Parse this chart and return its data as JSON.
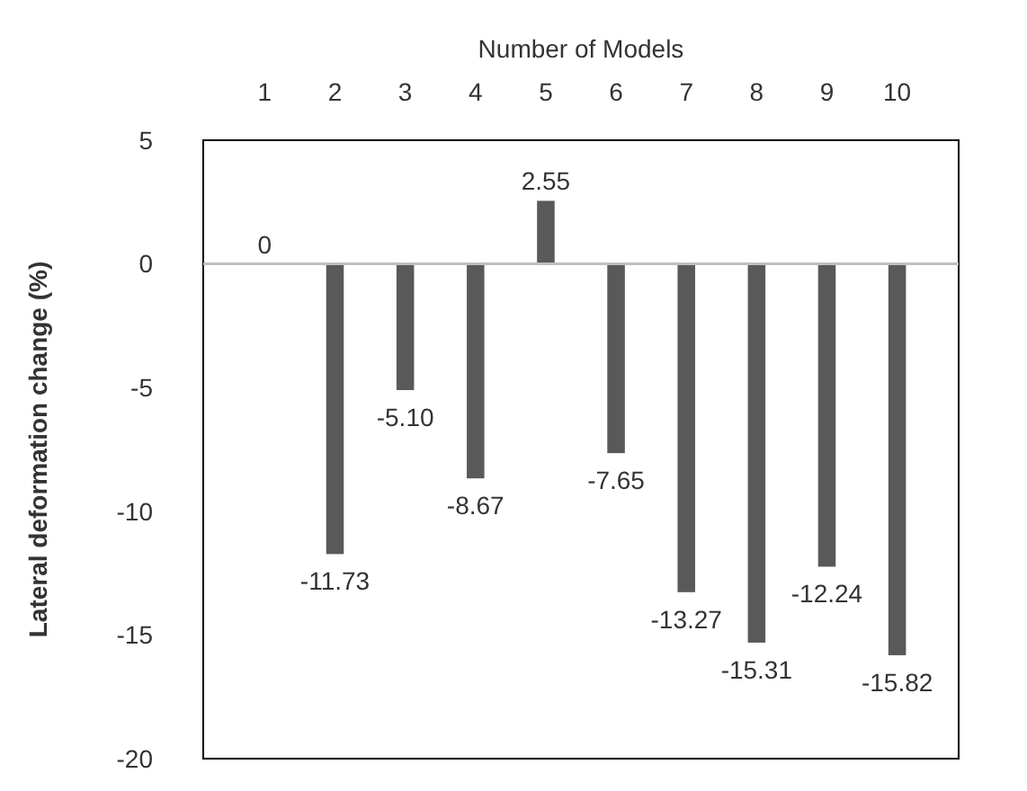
{
  "chart_data": {
    "type": "bar",
    "xlabel": "Number of Models",
    "ylabel": "Lateral deformation change (%)",
    "categories": [
      "1",
      "2",
      "3",
      "4",
      "5",
      "6",
      "7",
      "8",
      "9",
      "10"
    ],
    "values": [
      0,
      -11.73,
      -5.1,
      -8.67,
      2.55,
      -7.65,
      -13.27,
      -15.31,
      -12.24,
      -15.82
    ],
    "value_labels": [
      "0",
      "-11.73",
      "-5.10",
      "-8.67",
      "2.55",
      "-7.65",
      "-13.27",
      "-15.31",
      "-12.24",
      "-15.82"
    ],
    "color": "#595959",
    "ylim": [
      -20,
      5
    ],
    "yticks": [
      -20,
      -15,
      -10,
      -5,
      0,
      5
    ]
  }
}
